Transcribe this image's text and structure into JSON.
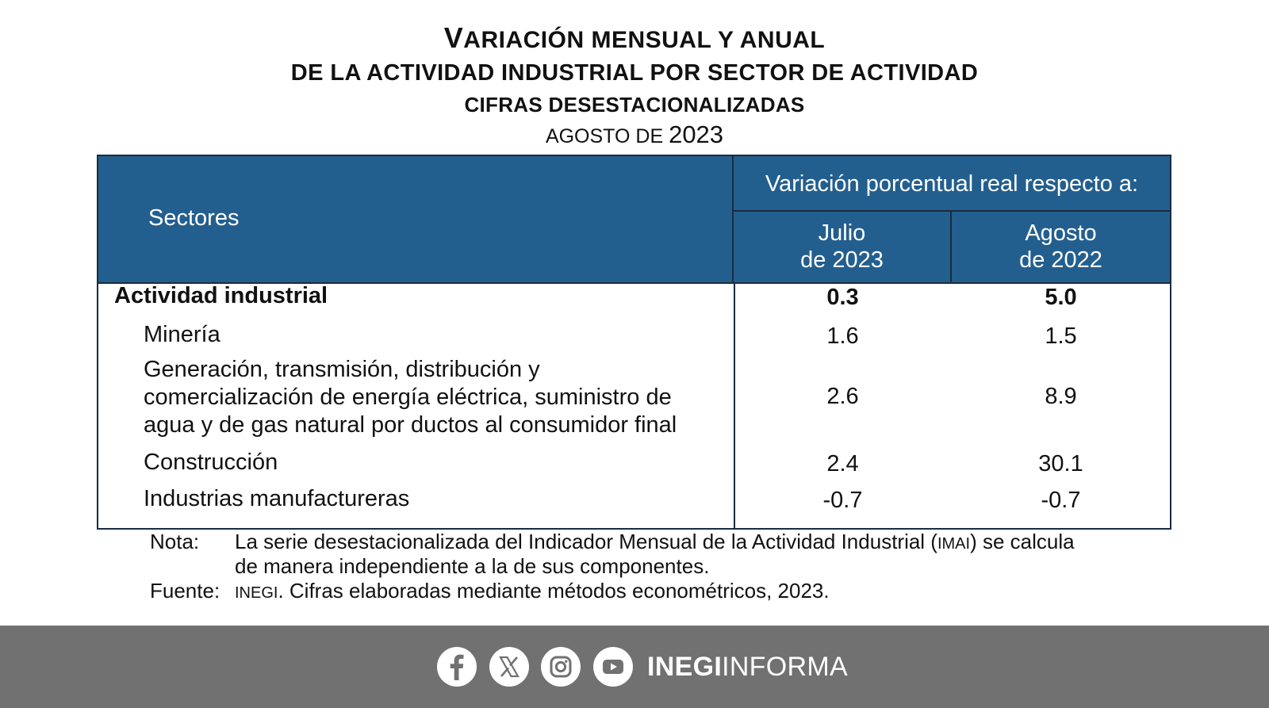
{
  "title": {
    "line1_first_letter": "V",
    "line1_rest": "ARIACIÓN MENSUAL Y ANUAL",
    "line2": "DE LA ACTIVIDAD INDUSTRIAL POR SECTOR DE ACTIVIDAD",
    "line3": "CIFRAS DESESTACIONALIZADAS",
    "line4_prefix": "AGOSTO DE",
    "line4_year": "2023"
  },
  "table": {
    "sectors_header": "Sectores",
    "group_header": "Variación porcentual real respecto a:",
    "col1_line1": "Julio",
    "col1_line2": "de 2023",
    "col2_line1": "Agosto",
    "col2_line2": "de 2022",
    "rows": [
      {
        "name": "Actividad industrial",
        "julio_2023": "0.3",
        "agosto_2022": "5.0"
      },
      {
        "name": "Minería",
        "julio_2023": "1.6",
        "agosto_2022": "1.5"
      },
      {
        "name_line1": "Generación, transmisión, distribución y",
        "name_line2": "comercialización de energía eléctrica, suministro de",
        "name_line3": "agua y de gas natural por ductos al consumidor final",
        "julio_2023": "2.6",
        "agosto_2022": "8.9"
      },
      {
        "name": "Construcción",
        "julio_2023": "2.4",
        "agosto_2022": "30.1"
      },
      {
        "name": "Industrias manufactureras",
        "julio_2023": "-0.7",
        "agosto_2022": "-0.7"
      }
    ]
  },
  "notes": {
    "nota_label": "Nota:",
    "nota_text_a": "La serie desestacionalizada del Indicador Mensual de la Actividad Industrial (",
    "nota_abbr": "IMAI",
    "nota_text_b": ") se calcula",
    "nota_line2": "de manera independiente a la de sus componentes.",
    "fuente_label": "Fuente:",
    "fuente_abbr": "INEGI",
    "fuente_text": ". Cifras elaboradas mediante métodos econométricos, 2023."
  },
  "footer": {
    "brand_bold": "INEGI",
    "brand_light": "INFORMA",
    "icons": [
      "facebook-icon",
      "x-icon",
      "instagram-icon",
      "youtube-icon"
    ]
  },
  "colors": {
    "header_blue": "#235f8e",
    "footer_gray": "#717171"
  }
}
